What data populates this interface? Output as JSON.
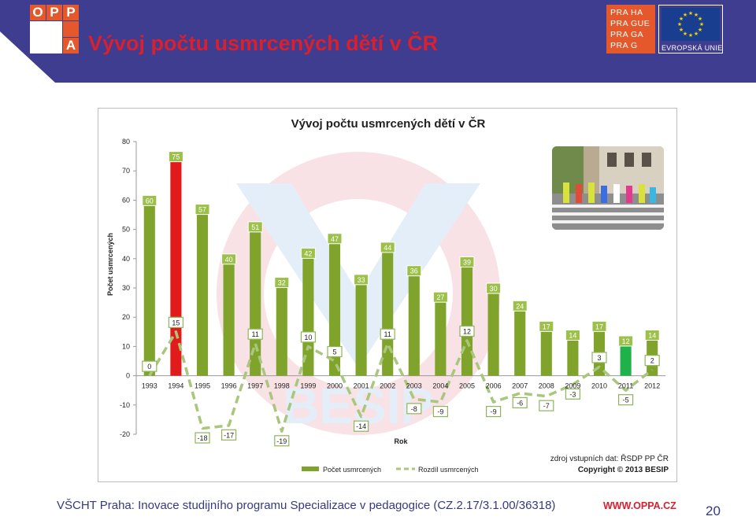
{
  "slide": {
    "title": "Vývoj počtu usmrcených dětí v ČR",
    "footer": "VŠCHT Praha: Inovace studijního programu Specializace v pedagogice (CZ.2.17/3.1.00/36318)",
    "url": "WWW.OPPA.CZ",
    "page_number": "20"
  },
  "logos": {
    "oppa_letters": [
      "O",
      "P",
      "P",
      "A"
    ],
    "praha_rows": [
      [
        "PRA",
        "HA"
      ],
      [
        "PRA",
        "GUE"
      ],
      [
        "PRA",
        "GA"
      ],
      [
        "PRA",
        "G"
      ]
    ],
    "eu_label": "EVROPSKÁ UNIE"
  },
  "colors": {
    "header_bg": "#3e3d8f",
    "title_red": "#d8202f",
    "bar_green": "#7fa32b",
    "bar_red": "#e11b1b",
    "bar_bright_green": "#1fb14a",
    "line_dash": "#a9c77c"
  },
  "chart_data": {
    "type": "bar",
    "title": "Vývoj počtu usmrcených dětí v ČR",
    "xlabel": "Rok",
    "ylabel": "Počet usmrcených",
    "ylim": [
      -20,
      80
    ],
    "yticks": [
      -20,
      -10,
      0,
      10,
      20,
      30,
      40,
      50,
      60,
      70,
      80
    ],
    "grid": false,
    "legend_position": "bottom",
    "categories": [
      "1993",
      "1994",
      "1995",
      "1996",
      "1997",
      "1998",
      "1999",
      "2000",
      "2001",
      "2002",
      "2003",
      "2004",
      "2005",
      "2006",
      "2007",
      "2008",
      "2009",
      "2010",
      "2011",
      "2012"
    ],
    "series": [
      {
        "name": "Počet usmrcených",
        "kind": "bar",
        "values": [
          60,
          75,
          57,
          40,
          51,
          32,
          42,
          47,
          33,
          44,
          36,
          27,
          39,
          30,
          24,
          17,
          14,
          17,
          12,
          14
        ],
        "highlight": {
          "1994": "#e11b1b",
          "2011": "#1fb14a"
        }
      },
      {
        "name": "Rozdíl usmrcených",
        "kind": "line",
        "style": "dashed",
        "values": [
          0,
          15,
          -18,
          -17,
          11,
          -19,
          10,
          5,
          -14,
          11,
          -8,
          -9,
          12,
          -9,
          -6,
          -7,
          -3,
          3,
          -5,
          2
        ]
      }
    ],
    "annotations": [
      "zdroj vstupních dat: ŘSDP PP ČR",
      "Copyright © 2013 BESIP"
    ],
    "watermark": "BESIP"
  }
}
